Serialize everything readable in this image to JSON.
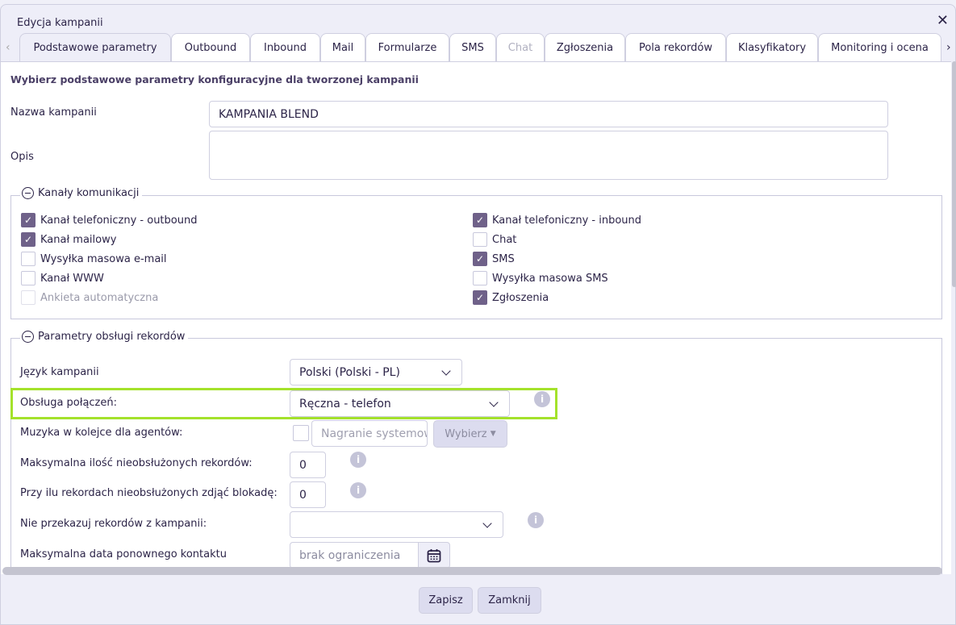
{
  "window": {
    "title": "Edycja kampanii"
  },
  "tabs": [
    {
      "label": "Podstawowe parametry",
      "state": "active"
    },
    {
      "label": "Outbound"
    },
    {
      "label": "Inbound"
    },
    {
      "label": "Mail"
    },
    {
      "label": "Formularze"
    },
    {
      "label": "SMS"
    },
    {
      "label": "Chat",
      "state": "disabled"
    },
    {
      "label": "Zgłoszenia"
    },
    {
      "label": "Pola rekordów"
    },
    {
      "label": "Klasyfikatory"
    },
    {
      "label": "Monitoring i ocena"
    }
  ],
  "main": {
    "heading": "Wybierz podstawowe parametry konfiguracyjne dla tworzonej kampanii",
    "name_label": "Nazwa kampanii",
    "name_value": "KAMPANIA BLEND",
    "desc_label": "Opis",
    "desc_value": "",
    "channels": {
      "legend": "Kanały komunikacji",
      "items": [
        {
          "label": "Kanał telefoniczny - outbound",
          "checked": true
        },
        {
          "label": "Kanał mailowy",
          "checked": true
        },
        {
          "label": "Wysyłka masowa e-mail",
          "checked": false
        },
        {
          "label": "Kanał WWW",
          "checked": false
        },
        {
          "label": "Ankieta automatyczna",
          "checked": false,
          "disabled": true
        },
        {
          "label": "Kanał telefoniczny - inbound",
          "checked": true
        },
        {
          "label": "Chat",
          "checked": false
        },
        {
          "label": "SMS",
          "checked": true
        },
        {
          "label": "Wysyłka masowa SMS",
          "checked": false
        },
        {
          "label": "Zgłoszenia",
          "checked": true
        }
      ]
    },
    "records": {
      "legend": "Parametry obsługi rekordów",
      "language_label": "Język kampanii",
      "language_value": "Polski (Polski - PL)",
      "calls_label": "Obsługa połączeń:",
      "calls_value": "Ręczna - telefon",
      "music_label": "Muzyka w kolejce dla agentów:",
      "music_placeholder": "Nagranie systemowe",
      "music_button": "Wybierz",
      "max_unhandled_label": "Maksymalna ilość nieobsłużonych rekordów:",
      "max_unhandled_value": "0",
      "unlock_label": "Przy ilu rekordach nieobsłużonych zdjąć blokadę:",
      "unlock_value": "0",
      "no_transfer_label": "Nie przekazuj rekordów z kampanii:",
      "no_transfer_value": "",
      "max_date_label": "Maksymalna data ponownego kontaktu",
      "max_date_placeholder": "brak ograniczenia"
    }
  },
  "footer": {
    "save": "Zapisz",
    "close": "Zamknij"
  },
  "colors": {
    "highlight": "#a4e22b",
    "checkbox": "#6f6189"
  }
}
